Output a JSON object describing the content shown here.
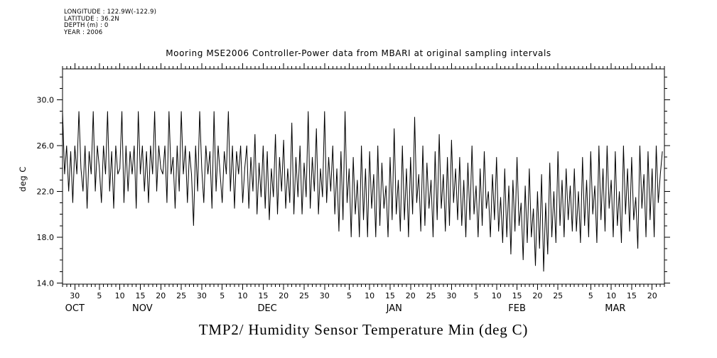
{
  "header_info": {
    "lines": [
      "LONGITUDE : 122.9W(-122.9)",
      "LATITUDE : 36.2N",
      "DEPTH (m) : 0",
      "YEAR : 2006"
    ]
  },
  "titles": {
    "top": "Mooring MSE2006 Controller-Power data from MBARI at original sampling intervals",
    "bottom": "TMP2/ Humidity Sensor Temperature Min (deg C)",
    "y_axis": "deg C"
  },
  "chart_data": {
    "type": "line",
    "title": "Mooring MSE2006 Controller-Power data from MBARI at original sampling intervals",
    "xlabel": "TMP2/ Humidity Sensor Temperature Min (deg C)",
    "ylabel": "deg C",
    "ylim": [
      13.9,
      32.7
    ],
    "y_major_ticks": [
      14.0,
      18.0,
      22.0,
      26.0,
      30.0
    ],
    "y_tick_labels": [
      "14.0",
      "18.0",
      "22.0",
      "26.0",
      "30.0"
    ],
    "y_minor_step": 1,
    "grid": false,
    "legend": "none",
    "x_domain_days": [
      0,
      147
    ],
    "samples_per_day": 2,
    "x_ticks": [
      {
        "day": 3,
        "label": "30"
      },
      {
        "day": 9,
        "label": "5"
      },
      {
        "day": 14,
        "label": "10"
      },
      {
        "day": 19,
        "label": "15"
      },
      {
        "day": 24,
        "label": "20"
      },
      {
        "day": 29,
        "label": "25"
      },
      {
        "day": 34,
        "label": "30"
      },
      {
        "day": 39,
        "label": "5"
      },
      {
        "day": 44,
        "label": "10"
      },
      {
        "day": 49,
        "label": "15"
      },
      {
        "day": 54,
        "label": "20"
      },
      {
        "day": 59,
        "label": "25"
      },
      {
        "day": 64,
        "label": "30"
      },
      {
        "day": 70,
        "label": "5"
      },
      {
        "day": 75,
        "label": "10"
      },
      {
        "day": 80,
        "label": "15"
      },
      {
        "day": 85,
        "label": "20"
      },
      {
        "day": 90,
        "label": "25"
      },
      {
        "day": 95,
        "label": "30"
      },
      {
        "day": 101,
        "label": "5"
      },
      {
        "day": 106,
        "label": "10"
      },
      {
        "day": 111,
        "label": "15"
      },
      {
        "day": 116,
        "label": "20"
      },
      {
        "day": 121,
        "label": "25"
      },
      {
        "day": 129,
        "label": "5"
      },
      {
        "day": 134,
        "label": "10"
      },
      {
        "day": 139,
        "label": "15"
      },
      {
        "day": 144,
        "label": "20"
      }
    ],
    "month_labels": [
      {
        "day": 3,
        "label": "OCT"
      },
      {
        "day": 19.5,
        "label": "NOV"
      },
      {
        "day": 50,
        "label": "DEC"
      },
      {
        "day": 81,
        "label": "JAN"
      },
      {
        "day": 111,
        "label": "FEB"
      },
      {
        "day": 135,
        "label": "MAR"
      }
    ],
    "values": [
      29,
      23.5,
      26,
      22,
      25.5,
      21,
      26,
      23.5,
      29,
      24,
      22,
      26,
      20.5,
      25.5,
      23.5,
      29,
      22,
      26,
      24,
      21,
      26,
      23.5,
      29,
      22,
      25.5,
      20.5,
      26,
      23.5,
      24,
      29,
      21,
      26,
      22,
      25.5,
      23.5,
      26,
      20.5,
      29,
      23.5,
      26,
      22,
      25.5,
      21,
      26,
      23.5,
      29,
      22,
      26,
      24,
      23.5,
      26,
      21,
      29,
      23.5,
      25,
      20.5,
      26,
      22,
      29,
      23.5,
      26,
      21,
      25.5,
      23.5,
      19,
      26,
      22,
      29,
      24,
      21,
      26,
      23.5,
      25.5,
      20.5,
      29,
      22,
      26,
      23.5,
      21,
      25.5,
      23.5,
      29,
      22,
      26,
      20.5,
      25.5,
      23.5,
      26,
      21,
      24,
      26,
      20.5,
      25,
      22,
      27,
      20,
      24.5,
      21.5,
      26,
      20.5,
      25.5,
      19.5,
      24,
      21.5,
      27,
      20,
      25,
      22,
      26.5,
      20.5,
      24,
      21,
      28,
      20,
      25,
      21.5,
      26,
      20,
      24.5,
      21.5,
      29,
      20.5,
      25,
      22,
      27.5,
      20,
      24,
      21.5,
      29,
      21,
      25,
      22,
      26,
      20,
      24,
      18.5,
      25.5,
      19.5,
      29,
      21,
      24,
      18,
      25,
      20,
      23,
      18,
      26,
      19.5,
      24,
      18,
      25.5,
      20.5,
      23.5,
      18,
      26,
      19,
      24.5,
      20.5,
      22.5,
      18,
      25,
      19.5,
      27.5,
      20,
      23,
      18.5,
      26,
      19.5,
      24,
      18,
      25,
      20,
      28.5,
      21,
      23.5,
      18.5,
      26,
      19,
      24.5,
      20.5,
      23,
      18,
      25.5,
      19.5,
      27,
      20.5,
      23.5,
      18.5,
      25,
      19,
      26.5,
      21,
      24,
      19.5,
      25,
      19,
      23,
      18,
      24.5,
      19.5,
      26,
      20,
      22.5,
      18,
      24,
      19,
      25.5,
      20.5,
      22,
      18,
      23.5,
      19.5,
      25,
      18.5,
      21.5,
      17.5,
      24,
      18,
      22.5,
      16.5,
      23,
      18.5,
      25,
      19,
      21,
      16,
      22.5,
      17.5,
      24,
      18,
      20.5,
      15.5,
      22,
      17,
      23.5,
      15,
      21,
      16.5,
      24.5,
      18,
      22,
      17.5,
      25.5,
      19,
      23,
      18,
      24,
      19.5,
      22.5,
      18.5,
      24,
      18.5,
      22,
      17.5,
      25,
      19,
      23,
      18,
      25.5,
      20,
      22.5,
      17.5,
      26,
      19.5,
      24,
      18.5,
      26,
      20.5,
      23,
      18,
      25.5,
      19,
      22,
      17.5,
      26,
      20,
      24,
      18.5,
      25,
      19.5,
      21.5,
      17,
      26,
      20.5,
      23.5,
      18,
      25.5,
      19.5,
      24,
      18,
      26,
      21,
      23.5,
      25.5
    ]
  }
}
